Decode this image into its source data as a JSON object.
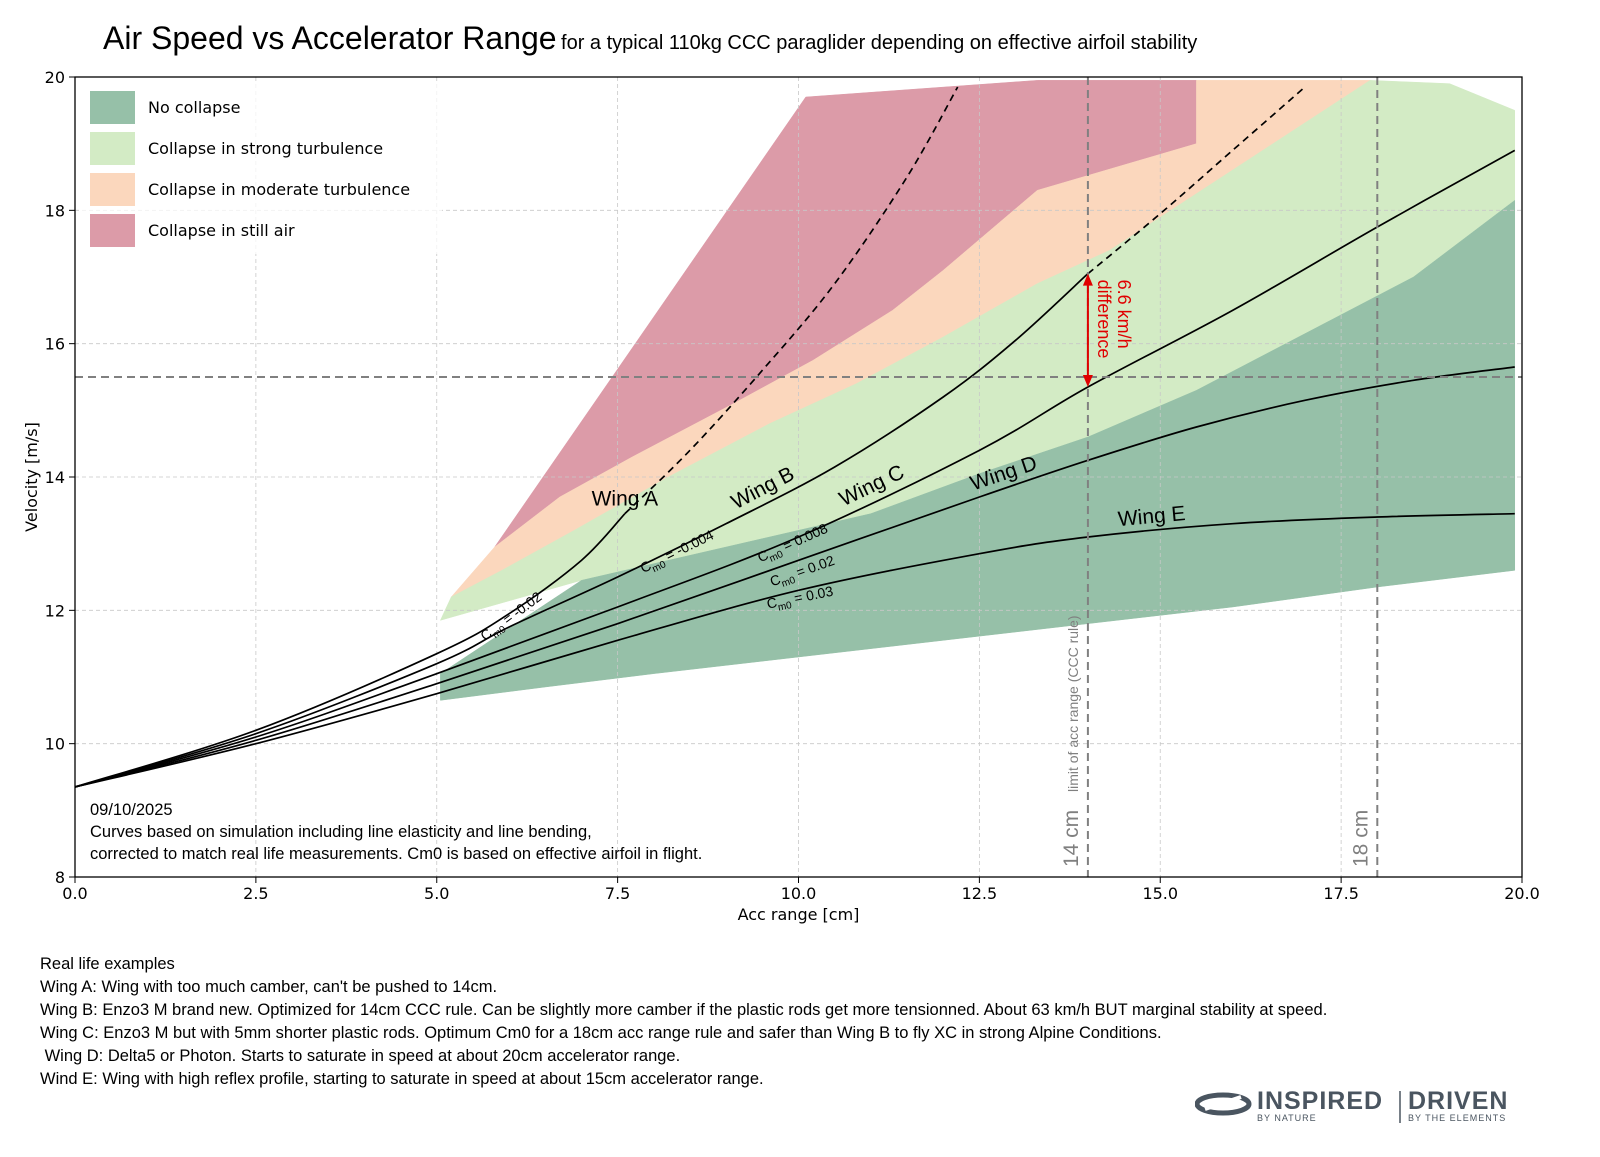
{
  "title": "Air Speed vs Accelerator Range",
  "subtitle": "for a typical 110kg CCC paraglider depending on effective airfoil stability",
  "chart_data": {
    "type": "line",
    "xlabel": "Acc range [cm]",
    "ylabel": "Velocity [m/s]",
    "xlim": [
      0,
      20
    ],
    "ylim": [
      8,
      20
    ],
    "xticks": [
      "0.0",
      "2.5",
      "5.0",
      "7.5",
      "10.0",
      "12.5",
      "15.0",
      "17.5",
      "20.0"
    ],
    "yticks": [
      "8",
      "10",
      "12",
      "14",
      "16",
      "18",
      "20"
    ],
    "grid": true,
    "legend_position": "upper-left",
    "legend": [
      {
        "label": "No collapse",
        "color": "#96c0a8"
      },
      {
        "label": "Collapse in strong turbulence",
        "color": "#d3ebc5"
      },
      {
        "label": "Collapse in moderate turbulence",
        "color": "#fbd7bd"
      },
      {
        "label": "Collapse in still air",
        "color": "#dc9ba8"
      }
    ],
    "regions": [
      {
        "name": "Collapse in still air",
        "color": "#dc9ba8",
        "points": [
          [
            5.8,
            12.95
          ],
          [
            10.1,
            19.7
          ],
          [
            13.3,
            19.95
          ],
          [
            15.5,
            19.95
          ],
          [
            15.5,
            19.0
          ],
          [
            13.3,
            18.3
          ],
          [
            12.0,
            17.1
          ],
          [
            11.3,
            16.5
          ],
          [
            10.2,
            15.75
          ],
          [
            9.1,
            15.1
          ],
          [
            7.7,
            14.3
          ],
          [
            6.7,
            13.7
          ],
          [
            5.8,
            12.95
          ]
        ]
      },
      {
        "name": "Collapse in moderate turbulence",
        "color": "#fbd7bd",
        "points": [
          [
            5.2,
            12.2
          ],
          [
            5.8,
            12.95
          ],
          [
            6.7,
            13.7
          ],
          [
            7.7,
            14.3
          ],
          [
            9.1,
            15.1
          ],
          [
            10.2,
            15.75
          ],
          [
            11.3,
            16.5
          ],
          [
            12.0,
            17.1
          ],
          [
            13.3,
            18.3
          ],
          [
            15.5,
            19.0
          ],
          [
            15.5,
            19.95
          ],
          [
            17.9,
            19.95
          ],
          [
            17.9,
            19.95
          ],
          [
            14.3,
            17.4
          ],
          [
            13.3,
            16.9
          ],
          [
            12.0,
            16.1
          ],
          [
            10.8,
            15.4
          ],
          [
            9.6,
            14.8
          ],
          [
            8.2,
            14.0
          ],
          [
            6.9,
            13.2
          ],
          [
            5.9,
            12.6
          ],
          [
            5.2,
            12.2
          ]
        ]
      },
      {
        "name": "Collapse in strong turbulence",
        "color": "#d3ebc5",
        "points": [
          [
            5.05,
            11.85
          ],
          [
            5.2,
            12.2
          ],
          [
            5.9,
            12.6
          ],
          [
            6.9,
            13.2
          ],
          [
            8.2,
            14.0
          ],
          [
            9.6,
            14.8
          ],
          [
            10.8,
            15.4
          ],
          [
            12.0,
            16.1
          ],
          [
            13.3,
            16.9
          ],
          [
            14.3,
            17.4
          ],
          [
            17.9,
            19.95
          ],
          [
            19.0,
            19.9
          ],
          [
            19.9,
            19.5
          ],
          [
            19.9,
            18.15
          ],
          [
            18.5,
            17.0
          ],
          [
            17.0,
            16.15
          ],
          [
            15.5,
            15.3
          ],
          [
            14.0,
            14.6
          ],
          [
            12.5,
            14.05
          ],
          [
            11.0,
            13.45
          ],
          [
            9.0,
            12.95
          ],
          [
            7.0,
            12.45
          ],
          [
            5.05,
            11.85
          ]
        ]
      },
      {
        "name": "No collapse",
        "color": "#96c0a8",
        "points": [
          [
            5.05,
            11.05
          ],
          [
            7.0,
            12.45
          ],
          [
            9.0,
            12.95
          ],
          [
            11.0,
            13.45
          ],
          [
            12.5,
            14.05
          ],
          [
            14.0,
            14.6
          ],
          [
            15.5,
            15.3
          ],
          [
            17.0,
            16.15
          ],
          [
            18.5,
            17.0
          ],
          [
            19.9,
            18.15
          ],
          [
            19.9,
            12.6
          ],
          [
            18.0,
            12.35
          ],
          [
            16.0,
            12.05
          ],
          [
            14.0,
            11.8
          ],
          [
            12.0,
            11.55
          ],
          [
            10.0,
            11.3
          ],
          [
            8.0,
            11.05
          ],
          [
            6.5,
            10.85
          ],
          [
            5.05,
            10.65
          ]
        ]
      }
    ],
    "series": [
      {
        "name": "Wing A",
        "cm0": "-0.02",
        "style": "solid-then-dashed",
        "solid": {
          "x": [
            0,
            2.5,
            5.0,
            6.0,
            7.0,
            7.6
          ],
          "y": [
            9.35,
            10.2,
            11.35,
            11.95,
            12.75,
            13.45
          ]
        },
        "dashed": {
          "x": [
            7.6,
            8.5,
            9.5,
            10.5,
            11.5,
            12.2
          ],
          "y": [
            13.45,
            14.4,
            15.6,
            16.9,
            18.5,
            19.85
          ]
        }
      },
      {
        "name": "Wing B",
        "cm0": "-0.004",
        "style": "solid-then-dashed",
        "solid": {
          "x": [
            0,
            2.5,
            5.0,
            6.0,
            7.5,
            9.0,
            10.5,
            12.0,
            13.0,
            14.0
          ],
          "y": [
            9.35,
            10.15,
            11.2,
            11.75,
            12.5,
            13.3,
            14.15,
            15.2,
            16.05,
            17.05
          ]
        },
        "dashed": {
          "x": [
            14.0,
            15.0,
            16.0,
            17.0
          ],
          "y": [
            17.05,
            17.95,
            18.9,
            19.85
          ]
        }
      },
      {
        "name": "Wing C",
        "cm0": "0.008",
        "x": [
          0,
          2.5,
          5.0,
          7.5,
          10.0,
          12.5,
          14.0,
          16.0,
          18.0,
          19.9
        ],
        "y": [
          9.35,
          10.1,
          11.05,
          12.05,
          13.1,
          14.4,
          15.35,
          16.5,
          17.75,
          18.9
        ]
      },
      {
        "name": "Wing D",
        "cm0": "0.02",
        "x": [
          0,
          2.5,
          5.0,
          7.5,
          10.0,
          12.5,
          14.0,
          15.5,
          17.0,
          18.5,
          19.9
        ],
        "y": [
          9.35,
          10.05,
          10.9,
          11.8,
          12.75,
          13.7,
          14.25,
          14.75,
          15.15,
          15.45,
          15.65
        ]
      },
      {
        "name": "Wing E",
        "cm0": "0.03",
        "x": [
          0,
          2.5,
          5.0,
          7.5,
          10.0,
          12.5,
          14.0,
          16.0,
          18.0,
          19.9
        ],
        "y": [
          9.35,
          10.0,
          10.75,
          11.55,
          12.3,
          12.85,
          13.1,
          13.3,
          13.4,
          13.45
        ]
      }
    ],
    "reference_lines": {
      "horizontal_y": 15.5,
      "vertical": [
        {
          "x": 14,
          "label": "14 cm",
          "sublabel": "limit of acc range (CCC rule)"
        },
        {
          "x": 18,
          "label": "18 cm"
        }
      ]
    },
    "difference_annotation": {
      "x": 14,
      "y_from": 15.35,
      "y_to": 17.05,
      "line1": "6.6 km/h",
      "line2": "difference",
      "color": "#e00000"
    },
    "note_lines": [
      "09/10/2025",
      "Curves based on simulation including line elasticity and line bending,",
      "corrected to match real life measurements. Cm0 is based on effective airfoil in flight."
    ]
  },
  "examples": {
    "heading": "Real life examples",
    "lines": [
      "Wing A: Wing with too much camber, can't be pushed to 14cm.",
      "Wing B: Enzo3 M brand new. Optimized for 14cm CCC rule. Can be slightly more camber if the plastic rods get more tensionned. About 63 km/h BUT marginal stability at speed.",
      "Wing C: Enzo3 M but with 5mm shorter plastic rods. Optimum Cm0 for a 18cm acc range rule and safer than Wing B to fly XC in strong Alpine Conditions.",
      " Wing D: Delta5 or Photon. Starts to saturate in speed at about 20cm accelerator range.",
      "Wind E: Wing with high reflex profile, starting to saturate in speed at about 15cm accelerator range."
    ]
  },
  "logo": {
    "left_word": "INSPIRED",
    "left_tag": "BY NATURE",
    "right_word": "DRIVEN",
    "right_tag": "BY THE ELEMENTS",
    "color": "#4a5560"
  }
}
